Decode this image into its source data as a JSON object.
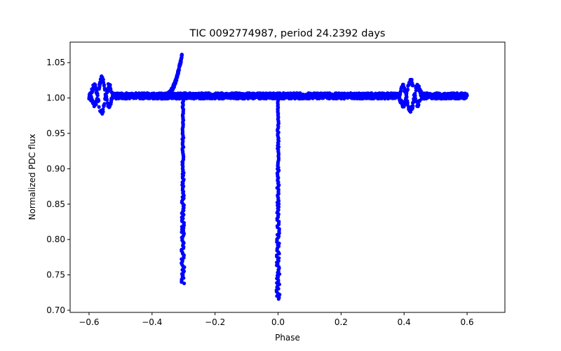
{
  "chart_data": {
    "type": "scatter",
    "title": "TIC 0092774987, period 24.2392 days",
    "xlabel": "Phase",
    "ylabel": "Normalized PDC flux",
    "xlim": [
      -0.66,
      0.72
    ],
    "ylim": [
      0.697,
      1.079
    ],
    "grid": false,
    "marker_color": "#0000ff",
    "x_ticks": [
      -0.6,
      -0.4,
      -0.2,
      0.0,
      0.2,
      0.4,
      0.6
    ],
    "x_tick_labels": [
      "−0.6",
      "−0.4",
      "−0.2",
      "0.0",
      "0.2",
      "0.4",
      "0.6"
    ],
    "y_ticks": [
      0.7,
      0.75,
      0.8,
      0.85,
      0.9,
      0.95,
      1.0,
      1.05
    ],
    "y_tick_labels": [
      "0.70",
      "0.75",
      "0.80",
      "0.85",
      "0.90",
      "0.95",
      "1.00",
      "1.05"
    ],
    "series": [
      {
        "name": "PDC flux",
        "x_range": [
          -0.6,
          0.6
        ],
        "baseline": 1.003,
        "features": [
          {
            "kind": "primary-eclipse",
            "phase": 0.0,
            "min_flux": 0.716
          },
          {
            "kind": "secondary-eclipse",
            "phase": -0.302,
            "min_flux": 0.738
          },
          {
            "kind": "pre-eclipse-rise",
            "phase_start": -0.36,
            "phase_end": -0.305,
            "peak_flux": 1.061
          },
          {
            "kind": "oscillation",
            "phase_start": -0.6,
            "phase_end": -0.52,
            "amplitude": 0.024
          },
          {
            "kind": "oscillation",
            "phase_start": 0.38,
            "phase_end": 0.46,
            "amplitude": 0.022
          }
        ]
      }
    ]
  }
}
